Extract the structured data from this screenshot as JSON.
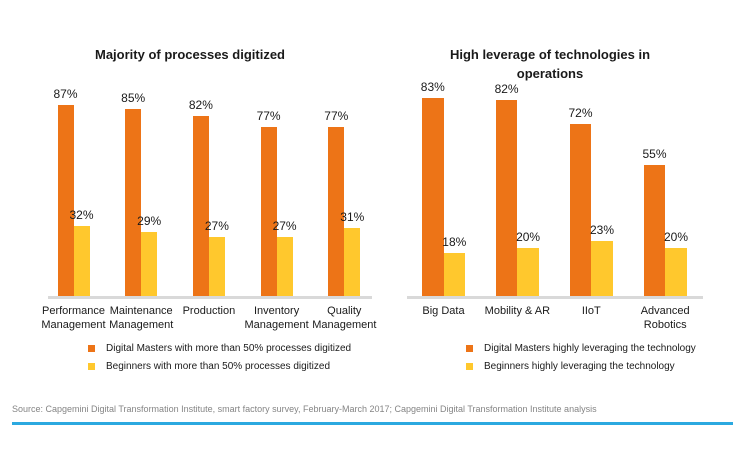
{
  "colors": {
    "masters": "#ED7417",
    "beginners": "#FFC82D",
    "axis": "#D9D9D9",
    "accent_line": "#2BA9E0",
    "text": "#1A1A1A",
    "source_text": "#858585"
  },
  "chart_data": [
    {
      "type": "bar",
      "title": "Majority of processes digitized",
      "categories": [
        "Performance Management",
        "Maintenance Management",
        "Production",
        "Inventory Management",
        "Quality Management"
      ],
      "series": [
        {
          "name": "Digital Masters with more than 50% processes digitized",
          "color_key": "masters",
          "values": [
            87,
            85,
            82,
            77,
            77
          ]
        },
        {
          "name": "Beginners with more than 50% processes digitized",
          "color_key": "beginners",
          "values": [
            32,
            29,
            27,
            27,
            31
          ]
        }
      ],
      "value_suffix": "%",
      "ylim": [
        0,
        100
      ],
      "grid": false,
      "legend_position": "bottom"
    },
    {
      "type": "bar",
      "title": "High leverage of technologies in\noperations",
      "categories": [
        "Big Data",
        "Mobility & AR",
        "IIoT",
        "Advanced Robotics"
      ],
      "series": [
        {
          "name": "Digital Masters highly leveraging the technology",
          "color_key": "masters",
          "values": [
            83,
            82,
            72,
            55
          ]
        },
        {
          "name": "Beginners highly leveraging the technology",
          "color_key": "beginners",
          "values": [
            18,
            20,
            23,
            20
          ]
        }
      ],
      "value_suffix": "%",
      "ylim": [
        0,
        100
      ],
      "grid": false,
      "legend_position": "bottom"
    }
  ],
  "source": {
    "text": "Source: Capgemini Digital Transformation Institute, smart factory survey, February-March 2017; Capgemini Digital Transformation Institute analysis"
  }
}
